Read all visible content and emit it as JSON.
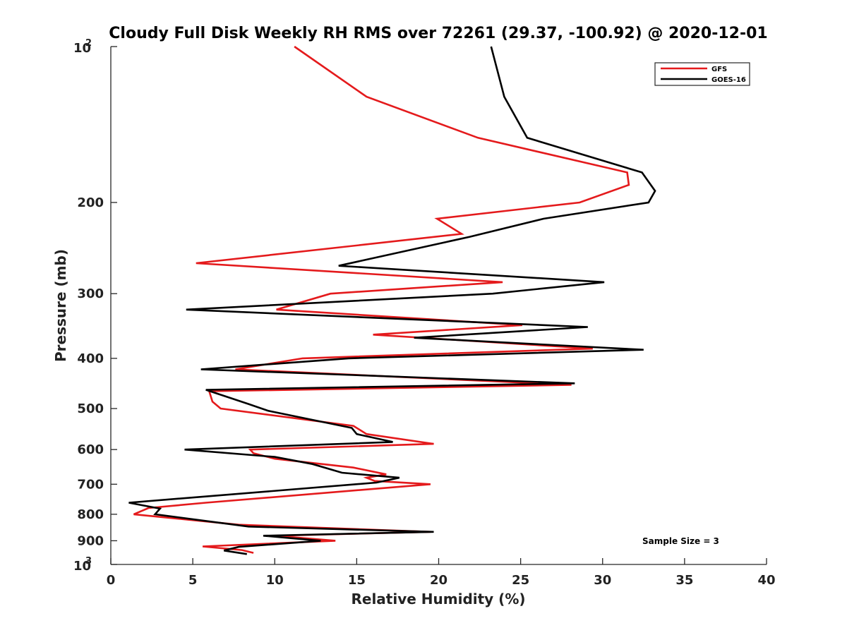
{
  "chart_data": {
    "type": "line",
    "title": "Cloudy Full Disk Weekly RH RMS over 72261 (29.37, -100.92) @ 2020-12-01",
    "xlabel": "Relative Humidity (%)",
    "ylabel": "Pressure (mb)",
    "xlim": [
      0,
      40
    ],
    "ylim": [
      100,
      1000
    ],
    "yscale": "log",
    "y_reversed": true,
    "xticks": [
      0,
      5,
      10,
      15,
      20,
      25,
      30,
      35,
      40
    ],
    "yticks": [
      {
        "value": 100,
        "base": "10",
        "exp": "2"
      },
      {
        "value": 200,
        "label": "200"
      },
      {
        "value": 300,
        "label": "300"
      },
      {
        "value": 400,
        "label": "400"
      },
      {
        "value": 500,
        "label": "500"
      },
      {
        "value": 600,
        "label": "600"
      },
      {
        "value": 700,
        "label": "700"
      },
      {
        "value": 800,
        "label": "800"
      },
      {
        "value": 900,
        "label": "900"
      },
      {
        "value": 1000,
        "base": "10",
        "exp": "3"
      }
    ],
    "legend_position": "top-right",
    "annotation": "Sample Size = 3",
    "series": [
      {
        "name": "GFS",
        "color": "#e41a1c",
        "points": [
          [
            11.2,
            100
          ],
          [
            15.6,
            125
          ],
          [
            22.4,
            150
          ],
          [
            31.5,
            175
          ],
          [
            31.6,
            185
          ],
          [
            28.6,
            200
          ],
          [
            19.9,
            215
          ],
          [
            21.4,
            230
          ],
          [
            5.2,
            262
          ],
          [
            23.9,
            285
          ],
          [
            13.4,
            300
          ],
          [
            10.1,
            322
          ],
          [
            25.1,
            345
          ],
          [
            16.0,
            360
          ],
          [
            29.4,
            383
          ],
          [
            11.7,
            400
          ],
          [
            7.6,
            420
          ],
          [
            28.1,
            450
          ],
          [
            6.0,
            463
          ],
          [
            6.2,
            485
          ],
          [
            6.7,
            500
          ],
          [
            14.8,
            540
          ],
          [
            15.6,
            560
          ],
          [
            19.7,
            585
          ],
          [
            8.5,
            600
          ],
          [
            8.7,
            610
          ],
          [
            10.0,
            625
          ],
          [
            14.8,
            650
          ],
          [
            16.8,
            670
          ],
          [
            15.6,
            680
          ],
          [
            16.1,
            690
          ],
          [
            19.5,
            700
          ],
          [
            5.8,
            760
          ],
          [
            2.3,
            778
          ],
          [
            1.4,
            800
          ],
          [
            7.8,
            838
          ],
          [
            19.5,
            865
          ],
          [
            10.0,
            880
          ],
          [
            13.7,
            900
          ],
          [
            5.6,
            923
          ],
          [
            8.0,
            938
          ],
          [
            8.7,
            950
          ]
        ]
      },
      {
        "name": "GOES-16",
        "color": "#000000",
        "points": [
          [
            23.2,
            100
          ],
          [
            24.0,
            125
          ],
          [
            25.4,
            150
          ],
          [
            32.4,
            175
          ],
          [
            33.2,
            190
          ],
          [
            32.8,
            200
          ],
          [
            26.4,
            215
          ],
          [
            21.9,
            233
          ],
          [
            13.9,
            265
          ],
          [
            30.1,
            285
          ],
          [
            23.3,
            300
          ],
          [
            4.6,
            322
          ],
          [
            29.1,
            348
          ],
          [
            18.5,
            365
          ],
          [
            32.5,
            385
          ],
          [
            14.5,
            400
          ],
          [
            5.5,
            420
          ],
          [
            28.3,
            447
          ],
          [
            5.8,
            460
          ],
          [
            8.4,
            490
          ],
          [
            9.6,
            505
          ],
          [
            14.7,
            545
          ],
          [
            15.0,
            560
          ],
          [
            17.2,
            580
          ],
          [
            4.5,
            600
          ],
          [
            10.0,
            620
          ],
          [
            12.3,
            640
          ],
          [
            14.1,
            665
          ],
          [
            17.6,
            680
          ],
          [
            16.2,
            695
          ],
          [
            1.1,
            760
          ],
          [
            3.0,
            780
          ],
          [
            2.7,
            800
          ],
          [
            8.4,
            845
          ],
          [
            19.7,
            865
          ],
          [
            9.3,
            880
          ],
          [
            12.8,
            900
          ],
          [
            7.8,
            925
          ],
          [
            6.9,
            940
          ],
          [
            8.3,
            955
          ]
        ]
      }
    ]
  }
}
